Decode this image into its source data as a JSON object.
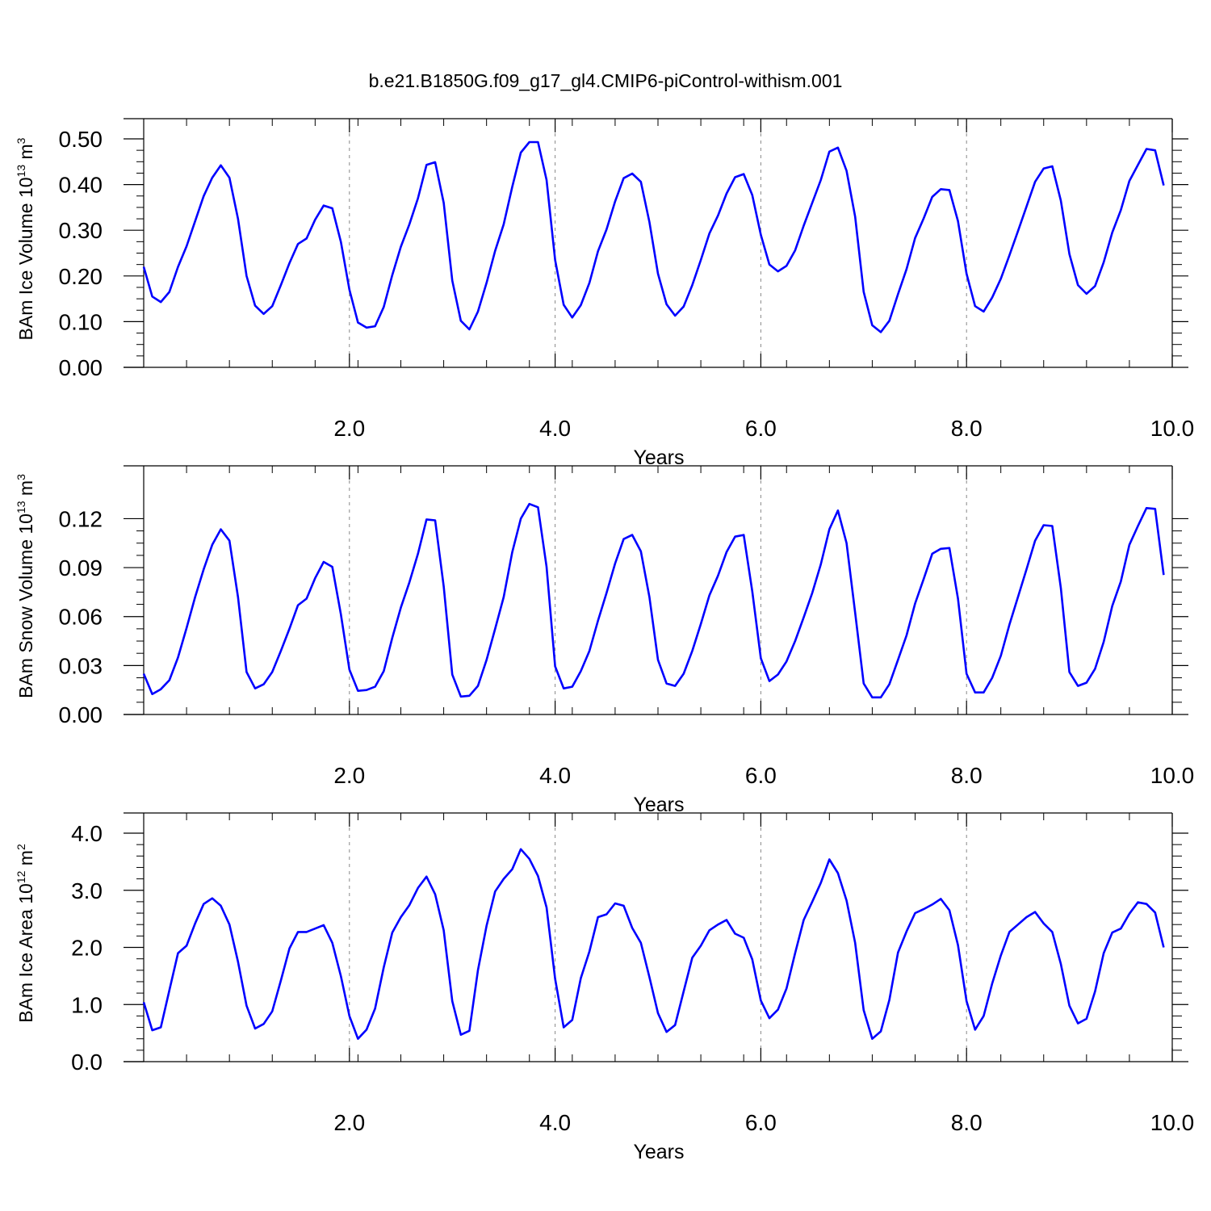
{
  "figure_title": "b.e21.B1850G.f09_g17_gl4.CMIP6-piControl-withism.001",
  "colors": {
    "line": "#0000ff",
    "axes": "#000000",
    "grid": "#888888"
  },
  "chart_data": [
    {
      "type": "line",
      "title": "",
      "xlabel": "Years",
      "ylabel": {
        "prefix": "BAm Ice Volume 10",
        "exponent": "13",
        "unit": " m",
        "unit_exponent": "3"
      },
      "xlim": [
        0.0,
        10.0
      ],
      "ylim": [
        0.0,
        0.5
      ],
      "xticks": [
        2.0,
        4.0,
        6.0,
        8.0,
        10.0
      ],
      "xtick_labels": [
        "2.0",
        "4.0",
        "6.0",
        "8.0",
        "10.0"
      ],
      "yticks": [
        0.0,
        0.1,
        0.2,
        0.3,
        0.4,
        0.5
      ],
      "ytick_labels": [
        "0.00",
        "0.10",
        "0.20",
        "0.30",
        "0.40",
        "0.50"
      ],
      "x_minor_step": 0.4166667,
      "y_minor_step": 0.025,
      "grid": "vertical dashed at major x ticks",
      "series": [
        {
          "x_start": 0.0,
          "x_step": 0.0833333,
          "values": [
            0.22,
            0.155,
            0.143,
            0.165,
            0.22,
            0.265,
            0.32,
            0.375,
            0.415,
            0.442,
            0.415,
            0.325,
            0.2,
            0.135,
            0.117,
            0.134,
            0.18,
            0.228,
            0.27,
            0.282,
            0.323,
            0.354,
            0.348,
            0.275,
            0.17,
            0.098,
            0.087,
            0.09,
            0.132,
            0.202,
            0.264,
            0.313,
            0.37,
            0.443,
            0.449,
            0.36,
            0.19,
            0.102,
            0.083,
            0.122,
            0.185,
            0.255,
            0.313,
            0.395,
            0.47,
            0.493,
            0.493,
            0.41,
            0.235,
            0.137,
            0.109,
            0.136,
            0.185,
            0.254,
            0.302,
            0.363,
            0.414,
            0.424,
            0.406,
            0.318,
            0.205,
            0.138,
            0.113,
            0.133,
            0.18,
            0.235,
            0.293,
            0.332,
            0.38,
            0.416,
            0.423,
            0.377,
            0.29,
            0.225,
            0.21,
            0.222,
            0.256,
            0.31,
            0.36,
            0.41,
            0.472,
            0.481,
            0.43,
            0.33,
            0.165,
            0.092,
            0.077,
            0.102,
            0.16,
            0.215,
            0.283,
            0.326,
            0.373,
            0.39,
            0.388,
            0.32,
            0.205,
            0.134,
            0.122,
            0.153,
            0.194,
            0.245,
            0.298,
            0.352,
            0.406,
            0.435,
            0.44,
            0.365,
            0.248,
            0.18,
            0.161,
            0.178,
            0.23,
            0.295,
            0.344,
            0.408,
            0.443,
            0.478,
            0.475,
            0.398
          ]
        }
      ]
    },
    {
      "type": "line",
      "title": "",
      "xlabel": "Years",
      "ylabel": {
        "prefix": "BAm Snow Volume 10",
        "exponent": "13",
        "unit": " m",
        "unit_exponent": "3"
      },
      "xlim": [
        0.0,
        10.0
      ],
      "ylim": [
        0.0,
        0.14
      ],
      "xticks": [
        2.0,
        4.0,
        6.0,
        8.0,
        10.0
      ],
      "xtick_labels": [
        "2.0",
        "4.0",
        "6.0",
        "8.0",
        "10.0"
      ],
      "yticks": [
        0.0,
        0.03,
        0.06,
        0.09,
        0.12
      ],
      "ytick_labels": [
        "0.00",
        "0.03",
        "0.06",
        "0.09",
        "0.12"
      ],
      "x_minor_step": 0.4166667,
      "y_minor_step": 0.0075,
      "grid": "vertical dashed at major x ticks",
      "series": [
        {
          "x_start": 0.0,
          "x_step": 0.0833333,
          "values": [
            0.025,
            0.0125,
            0.0155,
            0.021,
            0.035,
            0.053,
            0.072,
            0.089,
            0.104,
            0.1135,
            0.1065,
            0.072,
            0.026,
            0.016,
            0.0185,
            0.026,
            0.039,
            0.0525,
            0.067,
            0.071,
            0.0835,
            0.0935,
            0.0905,
            0.0615,
            0.0275,
            0.0145,
            0.015,
            0.017,
            0.0265,
            0.047,
            0.0655,
            0.081,
            0.0985,
            0.1195,
            0.119,
            0.0785,
            0.0245,
            0.011,
            0.0115,
            0.0175,
            0.0335,
            0.0525,
            0.072,
            0.0995,
            0.12,
            0.129,
            0.127,
            0.0905,
            0.0295,
            0.016,
            0.017,
            0.0265,
            0.039,
            0.0575,
            0.0745,
            0.0925,
            0.1075,
            0.11,
            0.1,
            0.072,
            0.0335,
            0.019,
            0.0175,
            0.025,
            0.039,
            0.0555,
            0.073,
            0.085,
            0.0995,
            0.109,
            0.11,
            0.0755,
            0.0345,
            0.0205,
            0.0245,
            0.0325,
            0.045,
            0.0595,
            0.0745,
            0.092,
            0.1135,
            0.125,
            0.105,
            0.0625,
            0.019,
            0.0105,
            0.0105,
            0.0185,
            0.0335,
            0.0485,
            0.068,
            0.083,
            0.0985,
            0.1015,
            0.102,
            0.071,
            0.025,
            0.0135,
            0.0135,
            0.0225,
            0.036,
            0.055,
            0.072,
            0.089,
            0.1065,
            0.116,
            0.1155,
            0.0775,
            0.026,
            0.0175,
            0.0195,
            0.028,
            0.0445,
            0.0665,
            0.0815,
            0.104,
            0.1155,
            0.1265,
            0.126,
            0.0855
          ]
        }
      ]
    },
    {
      "type": "line",
      "title": "",
      "xlabel": "Years",
      "ylabel": {
        "prefix": "BAm Ice Area 10",
        "exponent": "12",
        "unit": " m",
        "unit_exponent": "2"
      },
      "xlim": [
        0.0,
        10.0
      ],
      "ylim": [
        0.0,
        4.0
      ],
      "xticks": [
        2.0,
        4.0,
        6.0,
        8.0,
        10.0
      ],
      "xtick_labels": [
        "2.0",
        "4.0",
        "6.0",
        "8.0",
        "10.0"
      ],
      "yticks": [
        0.0,
        1.0,
        2.0,
        3.0,
        4.0
      ],
      "ytick_labels": [
        "0.0",
        "1.0",
        "2.0",
        "3.0",
        "4.0"
      ],
      "x_minor_step": 0.4166667,
      "y_minor_step": 0.2,
      "grid": "vertical dashed at major x ticks",
      "series": [
        {
          "x_start": 0.0,
          "x_step": 0.0833333,
          "values": [
            1.04,
            0.55,
            0.6,
            1.25,
            1.9,
            2.03,
            2.42,
            2.76,
            2.86,
            2.73,
            2.4,
            1.75,
            0.98,
            0.58,
            0.66,
            0.88,
            1.42,
            1.98,
            2.27,
            2.27,
            2.33,
            2.39,
            2.08,
            1.5,
            0.8,
            0.4,
            0.56,
            0.93,
            1.65,
            2.26,
            2.53,
            2.74,
            3.04,
            3.24,
            2.93,
            2.3,
            1.06,
            0.47,
            0.54,
            1.6,
            2.38,
            2.98,
            3.2,
            3.37,
            3.72,
            3.55,
            3.25,
            2.7,
            1.45,
            0.6,
            0.73,
            1.46,
            1.93,
            2.53,
            2.58,
            2.77,
            2.73,
            2.34,
            2.08,
            1.48,
            0.85,
            0.52,
            0.64,
            1.23,
            1.82,
            2.03,
            2.3,
            2.4,
            2.48,
            2.24,
            2.17,
            1.79,
            1.07,
            0.76,
            0.91,
            1.28,
            1.9,
            2.48,
            2.8,
            3.13,
            3.54,
            3.3,
            2.82,
            2.08,
            0.9,
            0.4,
            0.53,
            1.08,
            1.91,
            2.28,
            2.6,
            2.67,
            2.75,
            2.85,
            2.65,
            2.04,
            1.06,
            0.56,
            0.8,
            1.37,
            1.86,
            2.27,
            2.4,
            2.53,
            2.62,
            2.42,
            2.27,
            1.71,
            0.98,
            0.67,
            0.75,
            1.23,
            1.9,
            2.26,
            2.33,
            2.59,
            2.79,
            2.76,
            2.61,
            2.0
          ]
        }
      ]
    }
  ]
}
